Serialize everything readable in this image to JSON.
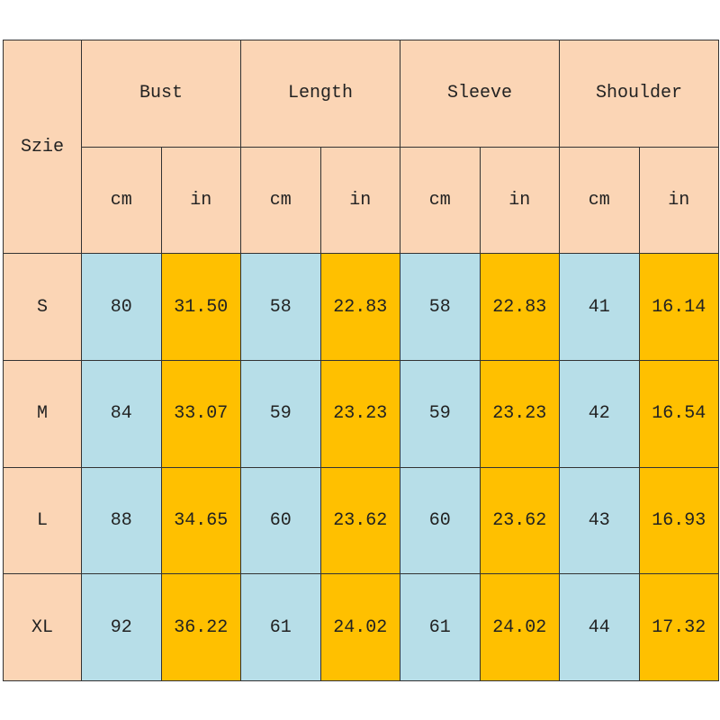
{
  "table": {
    "corner": "Szie",
    "groups": [
      {
        "name": "Bust",
        "units": [
          "cm",
          "in"
        ]
      },
      {
        "name": "Length",
        "units": [
          "cm",
          "in"
        ]
      },
      {
        "name": "Sleeve",
        "units": [
          "cm",
          "in"
        ]
      },
      {
        "name": "Shoulder",
        "units": [
          "cm",
          "in"
        ]
      }
    ],
    "rows": [
      [
        "S",
        "80",
        "31.50",
        "58",
        "22.83",
        "58",
        "22.83",
        "41",
        "16.14"
      ],
      [
        "M",
        "84",
        "33.07",
        "59",
        "23.23",
        "59",
        "23.23",
        "42",
        "16.54"
      ],
      [
        "L",
        "88",
        "34.65",
        "60",
        "23.62",
        "60",
        "23.62",
        "43",
        "16.93"
      ],
      [
        "XL",
        "92",
        "36.22",
        "61",
        "24.02",
        "61",
        "24.02",
        "44",
        "17.32"
      ]
    ]
  }
}
